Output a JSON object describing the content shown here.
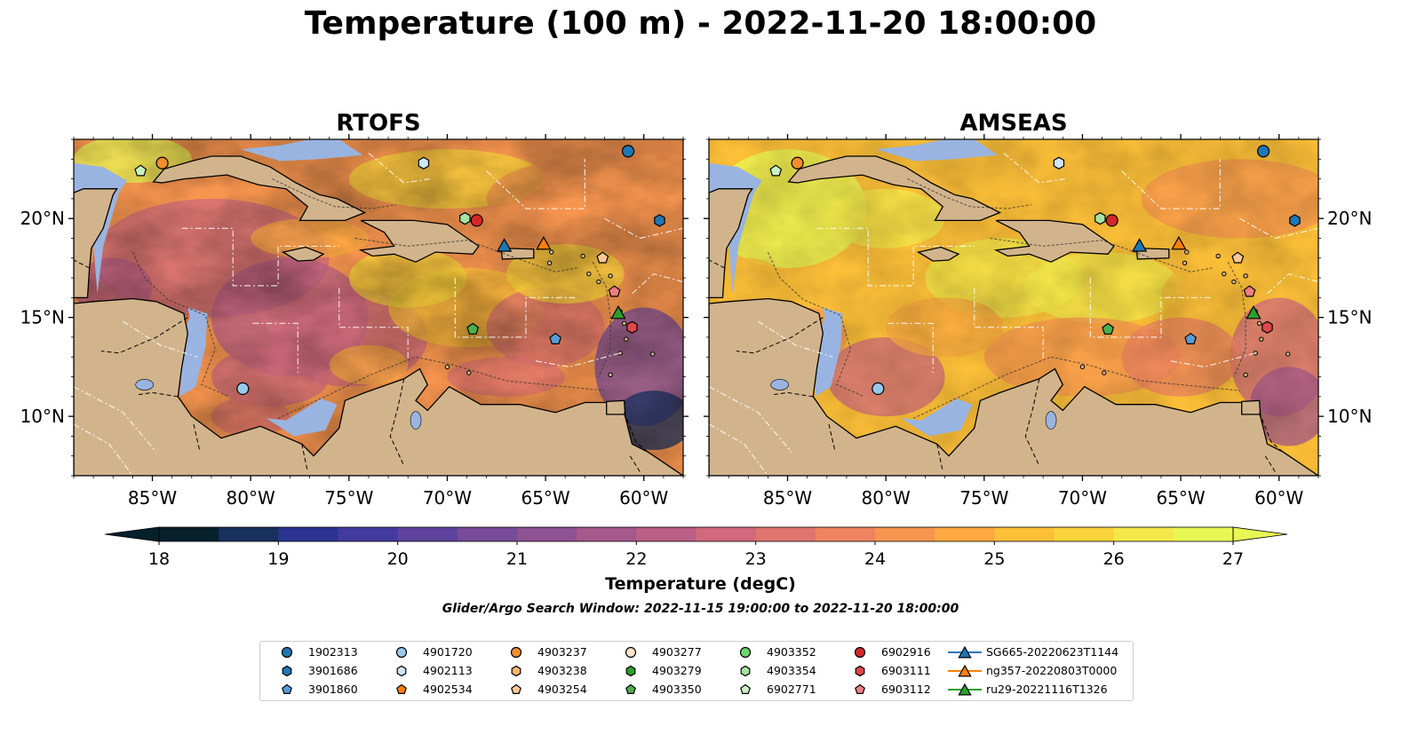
{
  "title": "Temperature (100 m) - 2022-11-20 18:00:00",
  "panels": [
    {
      "title": "RTOFS",
      "model": "rtofs"
    },
    {
      "title": "AMSEAS",
      "model": "amseas"
    }
  ],
  "map": {
    "lon_range": [
      -89,
      -58
    ],
    "lat_range": [
      7,
      24
    ],
    "lon_ticks": [
      "85°W",
      "80°W",
      "75°W",
      "70°W",
      "65°W",
      "60°W"
    ],
    "lat_ticks": [
      "20°N",
      "15°N",
      "10°N"
    ],
    "colors": {
      "land": "#d2b48c",
      "shelf": "#99b4e0",
      "coast": "#000000"
    }
  },
  "colorbar": {
    "label": "Temperature (degC)",
    "min": 18,
    "max": 27,
    "ticks": [
      "18",
      "19",
      "20",
      "21",
      "22",
      "23",
      "24",
      "25",
      "26",
      "27"
    ],
    "colormap": "thermal",
    "extend": "both"
  },
  "search_window": "Glider/Argo Search Window: 2022-11-15 19:00:00 to 2022-11-20 18:00:00",
  "legend": [
    {
      "label": "1902313",
      "marker": "circle",
      "color": "#1f77b4"
    },
    {
      "label": "3901686",
      "marker": "hexagon",
      "color": "#1f77b4"
    },
    {
      "label": "3901860",
      "marker": "pentagon",
      "color": "#5a9bd5"
    },
    {
      "label": "4901720",
      "marker": "circle",
      "color": "#9ac8eb"
    },
    {
      "label": "4902113",
      "marker": "hexagon",
      "color": "#cfe6f7"
    },
    {
      "label": "4902534",
      "marker": "pentagon",
      "color": "#ff7f0e"
    },
    {
      "label": "4903237",
      "marker": "circle",
      "color": "#f28e2b"
    },
    {
      "label": "4903238",
      "marker": "hexagon",
      "color": "#f9b66e"
    },
    {
      "label": "4903254",
      "marker": "pentagon",
      "color": "#fcc894"
    },
    {
      "label": "4903277",
      "marker": "circle",
      "color": "#fde0c5"
    },
    {
      "label": "4903279",
      "marker": "hexagon",
      "color": "#2ca02c"
    },
    {
      "label": "4903350",
      "marker": "pentagon",
      "color": "#4caf50"
    },
    {
      "label": "4903352",
      "marker": "circle",
      "color": "#6fd36f"
    },
    {
      "label": "4903354",
      "marker": "hexagon",
      "color": "#a5e3a0"
    },
    {
      "label": "6902771",
      "marker": "pentagon",
      "color": "#c9f2c4"
    },
    {
      "label": "6902916",
      "marker": "circle",
      "color": "#d62728"
    },
    {
      "label": "6903111",
      "marker": "hexagon",
      "color": "#e0474a"
    },
    {
      "label": "6903112",
      "marker": "pentagon",
      "color": "#ec7f82"
    },
    {
      "label": "SG665-20220623T1144",
      "marker": "triangle",
      "color": "#1f77b4",
      "line": true
    },
    {
      "label": "ng357-20220803T0000",
      "marker": "triangle",
      "color": "#ff7f0e",
      "line": true
    },
    {
      "label": "ru29-20221116T1326",
      "marker": "triangle",
      "color": "#2ca02c",
      "line": true
    }
  ],
  "platforms": [
    {
      "id": "1902313",
      "lon": -60.8,
      "lat": 23.4
    },
    {
      "id": "3901686",
      "lon": -59.2,
      "lat": 19.9
    },
    {
      "id": "3901860",
      "lon": -64.5,
      "lat": 13.9
    },
    {
      "id": "4901720",
      "lon": -80.4,
      "lat": 11.4
    },
    {
      "id": "4902113",
      "lon": -71.2,
      "lat": 22.8
    },
    {
      "id": "4903237",
      "lon": -84.5,
      "lat": 22.8
    },
    {
      "id": "4903350",
      "lon": -68.7,
      "lat": 14.4
    },
    {
      "id": "4903354",
      "lon": -69.1,
      "lat": 20.0
    },
    {
      "id": "6902771",
      "lon": -85.6,
      "lat": 22.4
    },
    {
      "id": "6902916",
      "lon": -68.5,
      "lat": 19.9
    },
    {
      "id": "6903111",
      "lon": -60.6,
      "lat": 14.5
    },
    {
      "id": "6903112",
      "lon": -61.5,
      "lat": 16.3
    },
    {
      "id": "4903254",
      "lon": -62.1,
      "lat": 18.0
    },
    {
      "id": "SG665-20220623T1144",
      "lon": -67.1,
      "lat": 18.6
    },
    {
      "id": "ng357-20220803T0000",
      "lon": -65.1,
      "lat": 18.7
    },
    {
      "id": "ru29-20221116T1326",
      "lon": -61.3,
      "lat": 15.2
    }
  ]
}
